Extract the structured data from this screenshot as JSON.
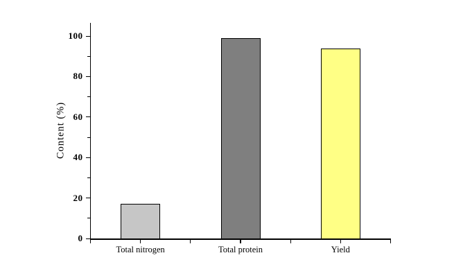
{
  "figure": {
    "background_color": "#ffffff",
    "axis_color": "#000000",
    "text_color": "#000000"
  },
  "y_axis": {
    "title": "Content (%)",
    "tick_labels": [
      "0",
      "20",
      "40",
      "60",
      "80",
      "100"
    ]
  },
  "chart_data": {
    "type": "bar",
    "title": "",
    "xlabel": "",
    "ylabel": "Content (%)",
    "categories": [
      "Total nitrogen",
      "Total protein",
      "Yield"
    ],
    "values": [
      17.2,
      98.9,
      93.7
    ],
    "bar_colors": [
      "#c6c6c6",
      "#7f7f7f",
      "#ffff85"
    ],
    "bar_border_color": "#000000",
    "ylim": [
      0,
      106
    ],
    "yticks": [
      0,
      20,
      40,
      60,
      80,
      100
    ],
    "minor_ytick_values": [
      10,
      30,
      50,
      70,
      90
    ],
    "grid": false,
    "legend": "none",
    "bar_unit": "%"
  }
}
